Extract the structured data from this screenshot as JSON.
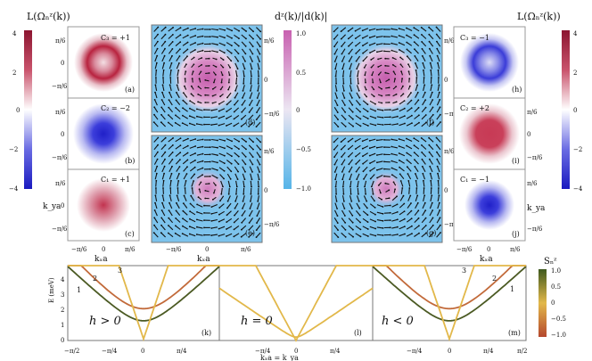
{
  "cbar_left": {
    "title": "L(Ωₙᶻ(k))",
    "ticks": [
      "4",
      "2",
      "0",
      "−2",
      "−4"
    ],
    "range": [
      -4,
      4
    ]
  },
  "cbar_mid": {
    "title": "dᶻ(k)/|d(k)|",
    "ticks": [
      "1.0",
      "0.5",
      "0",
      "−0.5",
      "−1.0"
    ],
    "range": [
      -1,
      1
    ]
  },
  "cbar_right": {
    "title": "L(Ωₙᶻ(k))",
    "ticks": [
      "4",
      "2",
      "0",
      "−2",
      "−4"
    ],
    "range": [
      -4,
      4
    ]
  },
  "cbar_bottom": {
    "title": "Sₙᶻ",
    "ticks": [
      "1.0",
      "0.5",
      "0",
      "−0.5",
      "−1.0"
    ],
    "range": [
      -1,
      1
    ]
  },
  "panels_left": [
    {
      "tag": "(a)",
      "chern": "C₃ = +1",
      "sign": 1
    },
    {
      "tag": "(b)",
      "chern": "C₂ = −2",
      "sign": -1
    },
    {
      "tag": "(c)",
      "chern": "C₁ = +1",
      "sign": 1
    }
  ],
  "panels_right": [
    {
      "tag": "(h)",
      "chern": "C₃ = −1",
      "sign": -1
    },
    {
      "tag": "(i)",
      "chern": "C₂ = +2",
      "sign": 1
    },
    {
      "tag": "(j)",
      "chern": "C₁ = −1",
      "sign": -1
    }
  ],
  "vector_panels": [
    {
      "tag": "(d)"
    },
    {
      "tag": "(e)"
    },
    {
      "tag": "(f)"
    },
    {
      "tag": "(g)"
    }
  ],
  "tick_labels": {
    "pos": "π/6",
    "neg": "−π/6",
    "zero": "0"
  },
  "axis_labels": {
    "kx": "kₓa",
    "ky": "k_ya",
    "kxky": "kₓa = k_ya",
    "energy": "E (meV)"
  },
  "band_panels": [
    {
      "tag": "(k)",
      "label": "h > 0"
    },
    {
      "tag": "(l)",
      "label": "h = 0"
    },
    {
      "tag": "(m)",
      "label": "h < 0"
    }
  ],
  "band_ticks_x": [
    "−π/2",
    "−π/4",
    "0",
    "π/4",
    "π/2"
  ],
  "band_ticks_y": [
    "0",
    "1",
    "2",
    "3",
    "4"
  ],
  "band_numbers_k": [
    "1",
    "2",
    "3"
  ],
  "band_numbers_m": [
    "1",
    "2",
    "3"
  ],
  "colors": {
    "red": "#b8233f",
    "blue": "#2d2fd0",
    "pink": "#cf6fb8",
    "cyan": "#5cb8e8",
    "yellow": "#e2b84a",
    "green": "#4b5a23",
    "orange": "#c26a3a"
  },
  "chart_data": {
    "type": "line",
    "title": "",
    "xlabel": "kₓa = k_ya",
    "ylabel": "E (meV)",
    "xlim": [
      -1.5708,
      1.5708
    ],
    "ylim": [
      0,
      5
    ],
    "series": [
      {
        "panel": "k",
        "values_desc": "band 1",
        "min": 1.3
      },
      {
        "panel": "k",
        "values_desc": "band 2",
        "min": 2.1
      },
      {
        "panel": "k",
        "values_desc": "band 3",
        "min": 0.0
      },
      {
        "panel": "l",
        "values_desc": "bands",
        "min": 0.0
      },
      {
        "panel": "m",
        "values_desc": "band 1",
        "min": 1.3
      },
      {
        "panel": "m",
        "values_desc": "band 2",
        "min": 2.1
      },
      {
        "panel": "m",
        "values_desc": "band 3",
        "min": 0.0
      }
    ]
  }
}
